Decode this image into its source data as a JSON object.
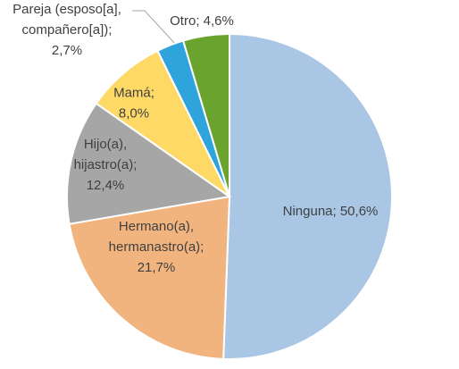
{
  "chart_data": {
    "type": "pie",
    "values": [
      50.6,
      21.7,
      12.4,
      8.0,
      2.7,
      4.6
    ],
    "value_labels": [
      "Ninguna; 50,6%",
      "Hermano(a),\nhermanastro(a);\n21,7%",
      "Hijo(a),\nhijastro(a);\n12,4%",
      "Mamá;\n8,0%",
      "Pareja (esposo[a],\ncompañero[a]);\n2,7%",
      "Otro; 4,6%"
    ],
    "colors": [
      "#a9c6e5",
      "#f2b47f",
      "#a6a6a6",
      "#ffd966",
      "#2ea3dc",
      "#6aa42f"
    ]
  }
}
